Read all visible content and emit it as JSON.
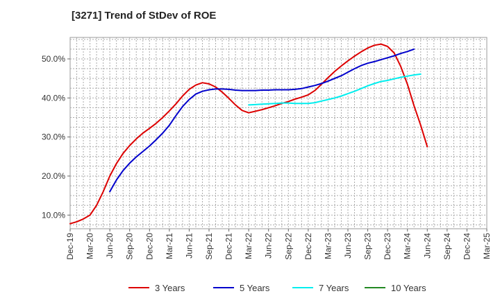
{
  "chart_data": {
    "type": "line",
    "title": "[3271]  Trend of StDev of ROE",
    "x_labels": [
      "Dec-19",
      "Mar-20",
      "Jun-20",
      "Sep-20",
      "Dec-20",
      "Mar-21",
      "Jun-21",
      "Sep-21",
      "Dec-21",
      "Mar-22",
      "Jun-22",
      "Sep-22",
      "Dec-22",
      "Mar-23",
      "Jun-23",
      "Sep-23",
      "Dec-23",
      "Mar-24",
      "Jun-24",
      "Sep-24",
      "Dec-24",
      "Mar-25"
    ],
    "y_ticks": [
      "10.0%",
      "20.0%",
      "30.0%",
      "40.0%",
      "50.0%"
    ],
    "y_tick_values": [
      10,
      20,
      30,
      40,
      50
    ],
    "ylim": [
      6.5,
      55.5
    ],
    "grid": true,
    "legend_position": "bottom",
    "series": [
      {
        "name": "3 Years",
        "color": "#dd0000",
        "start_index": 0,
        "values": [
          7.8,
          8.3,
          9.0,
          10.0,
          12.5,
          16.0,
          20.0,
          23.2,
          25.8,
          27.8,
          29.5,
          31.0,
          32.2,
          33.5,
          35.0,
          36.7,
          38.5,
          40.5,
          42.2,
          43.3,
          43.9,
          43.6,
          42.8,
          41.5,
          39.9,
          38.2,
          36.8,
          36.2,
          36.6,
          37.0,
          37.5,
          38.0,
          38.6,
          39.1,
          39.7,
          40.2,
          40.8,
          41.9,
          43.5,
          45.2,
          46.8,
          48.2,
          49.5,
          50.7,
          51.8,
          52.8,
          53.5,
          53.8,
          53.2,
          51.5,
          48.0,
          43.5,
          38.0,
          33.0,
          27.5
        ]
      },
      {
        "name": "5 Years",
        "color": "#0000cc",
        "start_index": 6,
        "values": [
          16.0,
          19.0,
          21.4,
          23.3,
          24.9,
          26.3,
          27.7,
          29.3,
          31.0,
          33.0,
          35.5,
          37.8,
          39.6,
          41.0,
          41.7,
          42.1,
          42.3,
          42.3,
          42.2,
          42.0,
          41.9,
          41.9,
          41.9,
          42.0,
          42.0,
          42.1,
          42.1,
          42.1,
          42.2,
          42.4,
          42.8,
          43.2,
          43.7,
          44.3,
          45.0,
          45.7,
          46.6,
          47.5,
          48.3,
          48.9,
          49.3,
          49.8,
          50.3,
          50.8,
          51.4,
          51.9,
          52.5
        ]
      },
      {
        "name": "7 Years",
        "color": "#00eeee",
        "start_index": 27,
        "values": [
          38.2,
          38.3,
          38.4,
          38.5,
          38.6,
          38.7,
          38.7,
          38.6,
          38.6,
          38.6,
          38.8,
          39.2,
          39.6,
          40.0,
          40.5,
          41.1,
          41.7,
          42.4,
          43.1,
          43.7,
          44.2,
          44.5,
          44.9,
          45.3,
          45.6,
          45.9,
          46.1
        ]
      },
      {
        "name": "10 Years",
        "color": "#228822",
        "start_index": 0,
        "values": []
      }
    ]
  }
}
